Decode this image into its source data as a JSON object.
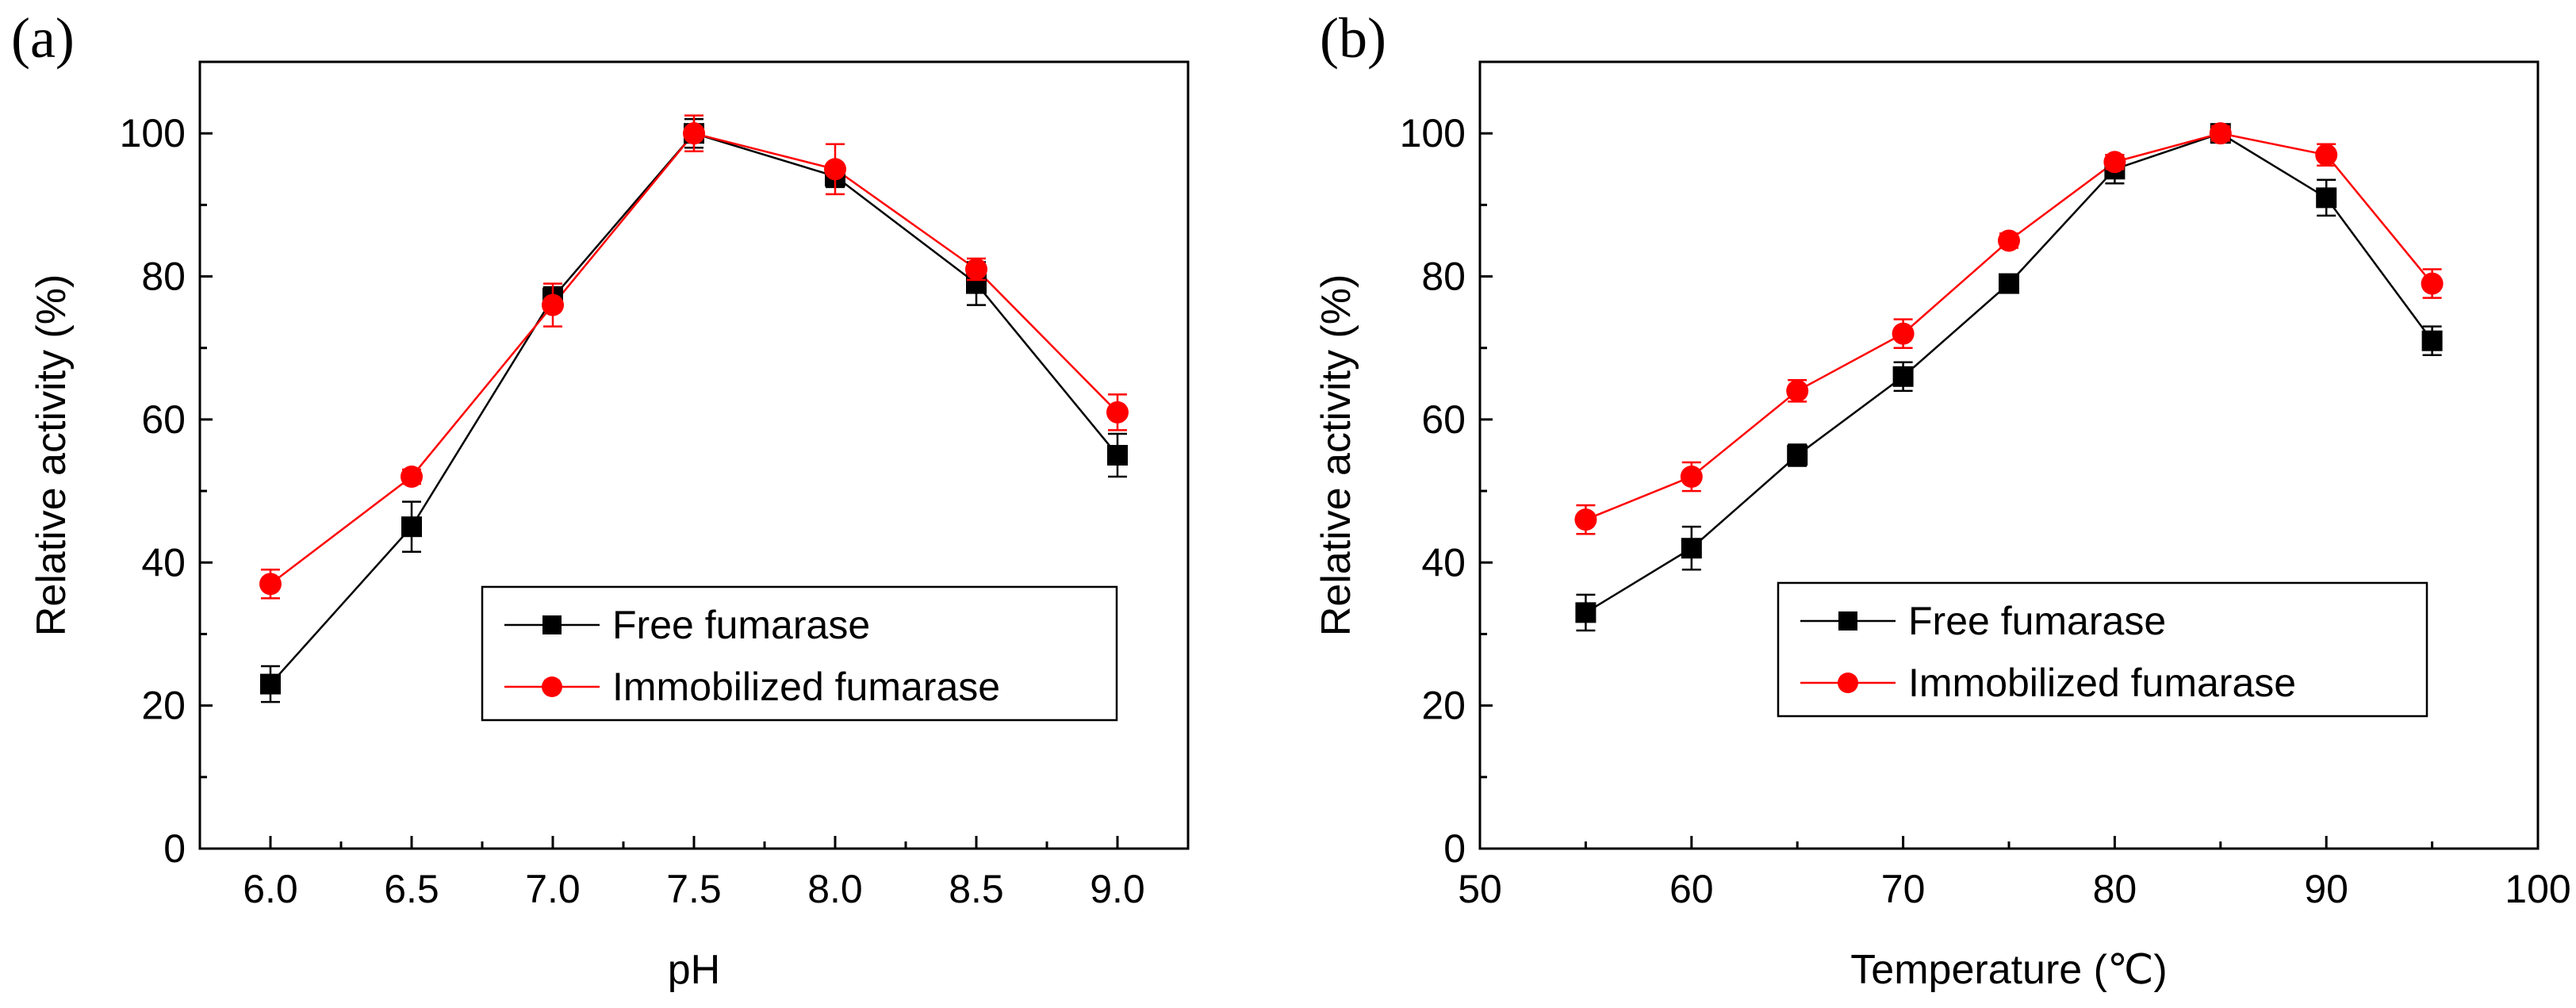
{
  "chart_data": [
    {
      "type": "line",
      "panel_label": "(a)",
      "xlabel": "pH",
      "ylabel": "Relative activity (%)",
      "xlim": [
        5.75,
        9.25
      ],
      "ylim": [
        0,
        110
      ],
      "xticks": [
        6.0,
        6.5,
        7.0,
        7.5,
        8.0,
        8.5,
        9.0
      ],
      "xtick_labels": [
        "6.0",
        "6.5",
        "7.0",
        "7.5",
        "8.0",
        "8.5",
        "9.0"
      ],
      "yticks": [
        0,
        20,
        40,
        60,
        80,
        100
      ],
      "ytick_labels": [
        "0",
        "20",
        "40",
        "60",
        "80",
        "100"
      ],
      "grid": false,
      "legend_position": "lower-center",
      "x": [
        6.0,
        6.5,
        7.0,
        7.5,
        8.0,
        8.5,
        9.0
      ],
      "series": [
        {
          "name": "Free fumarase",
          "color": "#000000",
          "marker": "square",
          "values": [
            23,
            45,
            77,
            100,
            94,
            79,
            55
          ],
          "errors": [
            2.5,
            3.5,
            1.5,
            2,
            1.5,
            3,
            3
          ]
        },
        {
          "name": "Immobilized fumarase",
          "color": "#ff0000",
          "marker": "circle",
          "values": [
            37,
            52,
            76,
            100,
            95,
            81,
            61
          ],
          "errors": [
            2,
            1,
            3,
            2.5,
            3.5,
            1.5,
            2.5
          ]
        }
      ]
    },
    {
      "type": "line",
      "panel_label": "(b)",
      "xlabel": "Temperature (℃)",
      "ylabel": "Relative activity (%)",
      "xlim": [
        50,
        100
      ],
      "ylim": [
        0,
        110
      ],
      "xticks": [
        50,
        60,
        70,
        80,
        90,
        100
      ],
      "xtick_labels": [
        "50",
        "60",
        "70",
        "80",
        "90",
        "100"
      ],
      "yticks": [
        0,
        20,
        40,
        60,
        80,
        100
      ],
      "ytick_labels": [
        "0",
        "20",
        "40",
        "60",
        "80",
        "100"
      ],
      "grid": false,
      "legend_position": "lower-center",
      "x": [
        55,
        60,
        65,
        70,
        75,
        80,
        85,
        90,
        95
      ],
      "series": [
        {
          "name": "Free fumarase",
          "color": "#000000",
          "marker": "square",
          "values": [
            33,
            42,
            55,
            66,
            79,
            95,
            100,
            91,
            71
          ],
          "errors": [
            2.5,
            3,
            1.5,
            2,
            1,
            2,
            1,
            2.5,
            2
          ]
        },
        {
          "name": "Immobilized fumarase",
          "color": "#ff0000",
          "marker": "circle",
          "values": [
            46,
            52,
            64,
            72,
            85,
            96,
            100,
            97,
            79
          ],
          "errors": [
            2,
            2,
            1.5,
            2,
            1,
            1,
            1,
            1.5,
            2
          ]
        }
      ]
    }
  ]
}
